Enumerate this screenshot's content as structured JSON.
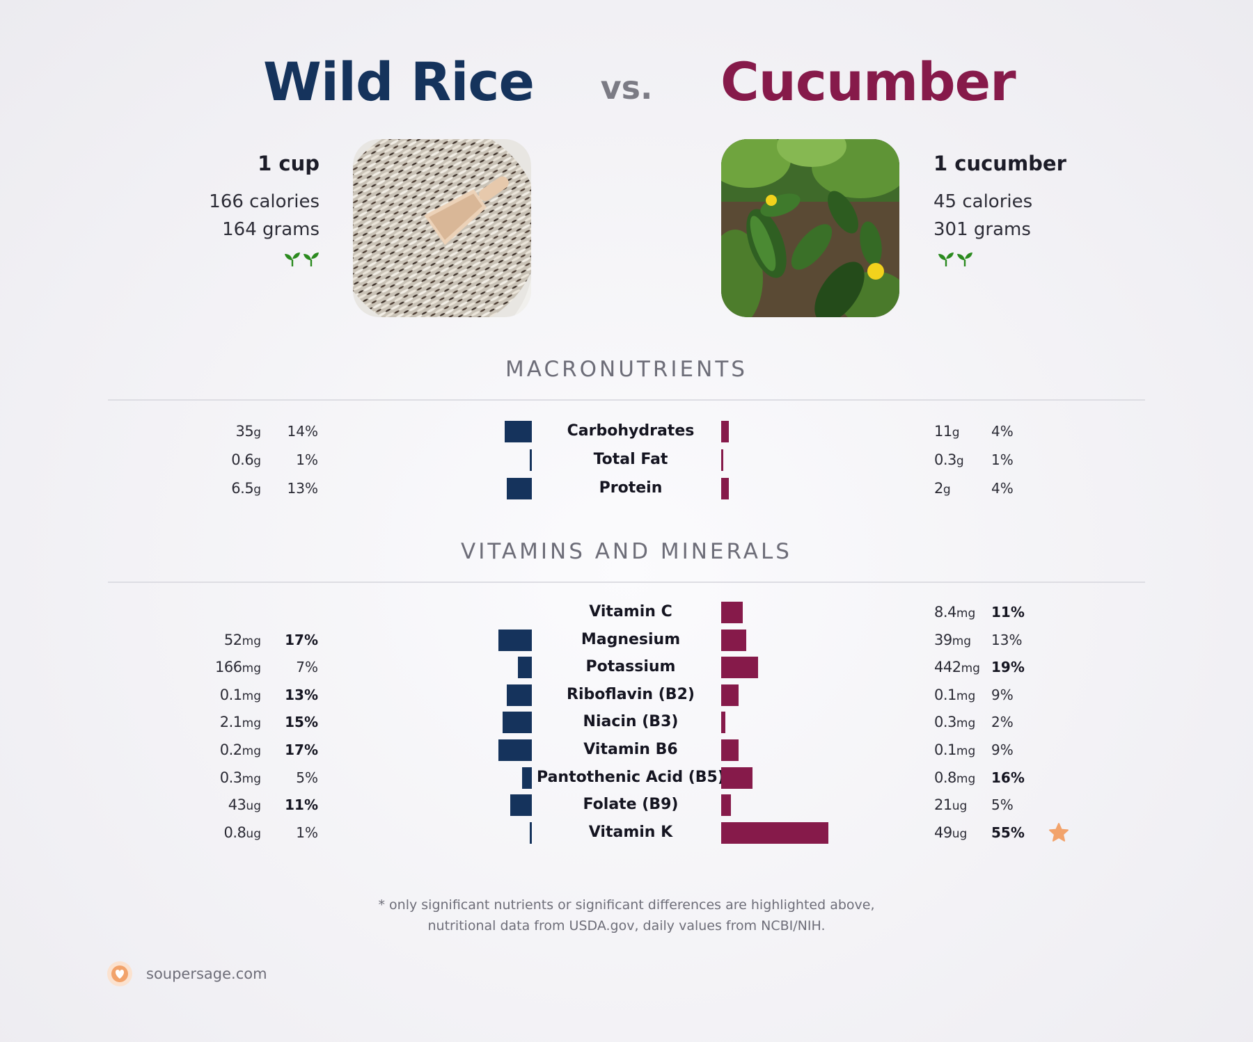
{
  "left_food": {
    "name": "Wild Rice",
    "serving": "1 cup",
    "calories": "166 calories",
    "grams": "164 grams",
    "color": "#15335c",
    "photo": "wild-rice-photo"
  },
  "vs": "vs.",
  "right_food": {
    "name": "Cucumber",
    "serving": "1 cucumber",
    "calories": "45 calories",
    "grams": "301 grams",
    "color": "#861a4a",
    "photo": "cucumber-photo"
  },
  "sections": {
    "macros_title": "MACRONUTRIENTS",
    "vitamins_title": "VITAMINS AND MINERALS"
  },
  "chart_data": {
    "type": "bar",
    "orientation": "horizontal-mirrored",
    "series": [
      {
        "name": "Wild Rice",
        "color": "#15335c"
      },
      {
        "name": "Cucumber",
        "color": "#861a4a"
      }
    ],
    "macronutrients": [
      {
        "name": "Carbohydrates",
        "left": {
          "num": "35",
          "unit": "g",
          "pct": "14%",
          "dv": 14,
          "bold": false
        },
        "right": {
          "num": "11",
          "unit": "g",
          "pct": "4%",
          "dv": 4,
          "bold": false
        }
      },
      {
        "name": "Total Fat",
        "left": {
          "num": "0.6",
          "unit": "g",
          "pct": "1%",
          "dv": 1,
          "bold": false
        },
        "right": {
          "num": "0.3",
          "unit": "g",
          "pct": "1%",
          "dv": 1,
          "bold": false
        }
      },
      {
        "name": "Protein",
        "left": {
          "num": "6.5",
          "unit": "g",
          "pct": "13%",
          "dv": 13,
          "bold": false
        },
        "right": {
          "num": "2",
          "unit": "g",
          "pct": "4%",
          "dv": 4,
          "bold": false
        }
      }
    ],
    "vitamins": [
      {
        "name": "Vitamin C",
        "left": null,
        "right": {
          "num": "8.4",
          "unit": "mg",
          "pct": "11%",
          "dv": 11,
          "bold": true
        }
      },
      {
        "name": "Magnesium",
        "left": {
          "num": "52",
          "unit": "mg",
          "pct": "17%",
          "dv": 17,
          "bold": true
        },
        "right": {
          "num": "39",
          "unit": "mg",
          "pct": "13%",
          "dv": 13,
          "bold": false
        }
      },
      {
        "name": "Potassium",
        "left": {
          "num": "166",
          "unit": "mg",
          "pct": "7%",
          "dv": 7,
          "bold": false
        },
        "right": {
          "num": "442",
          "unit": "mg",
          "pct": "19%",
          "dv": 19,
          "bold": true
        }
      },
      {
        "name": "Riboflavin (B2)",
        "left": {
          "num": "0.1",
          "unit": "mg",
          "pct": "13%",
          "dv": 13,
          "bold": true
        },
        "right": {
          "num": "0.1",
          "unit": "mg",
          "pct": "9%",
          "dv": 9,
          "bold": false
        }
      },
      {
        "name": "Niacin (B3)",
        "left": {
          "num": "2.1",
          "unit": "mg",
          "pct": "15%",
          "dv": 15,
          "bold": true
        },
        "right": {
          "num": "0.3",
          "unit": "mg",
          "pct": "2%",
          "dv": 2,
          "bold": false
        }
      },
      {
        "name": "Vitamin B6",
        "left": {
          "num": "0.2",
          "unit": "mg",
          "pct": "17%",
          "dv": 17,
          "bold": true
        },
        "right": {
          "num": "0.1",
          "unit": "mg",
          "pct": "9%",
          "dv": 9,
          "bold": false
        }
      },
      {
        "name": "Pantothenic Acid (B5)",
        "left": {
          "num": "0.3",
          "unit": "mg",
          "pct": "5%",
          "dv": 5,
          "bold": false
        },
        "right": {
          "num": "0.8",
          "unit": "mg",
          "pct": "16%",
          "dv": 16,
          "bold": true
        }
      },
      {
        "name": "Folate (B9)",
        "left": {
          "num": "43",
          "unit": "ug",
          "pct": "11%",
          "dv": 11,
          "bold": true
        },
        "right": {
          "num": "21",
          "unit": "ug",
          "pct": "5%",
          "dv": 5,
          "bold": false
        }
      },
      {
        "name": "Vitamin K",
        "left": {
          "num": "0.8",
          "unit": "ug",
          "pct": "1%",
          "dv": 1,
          "bold": false
        },
        "right": {
          "num": "49",
          "unit": "ug",
          "pct": "55%",
          "dv": 55,
          "bold": true
        },
        "star": "star-icon"
      }
    ]
  },
  "footnote": {
    "line1": "* only significant nutrients or significant differences are highlighted above,",
    "line2": "nutritional data from USDA.gov, daily values from NCBI/NIH."
  },
  "footer": {
    "site": "soupersage.com",
    "logo": "soupersage-logo-icon",
    "accent": "#f2a36b"
  }
}
